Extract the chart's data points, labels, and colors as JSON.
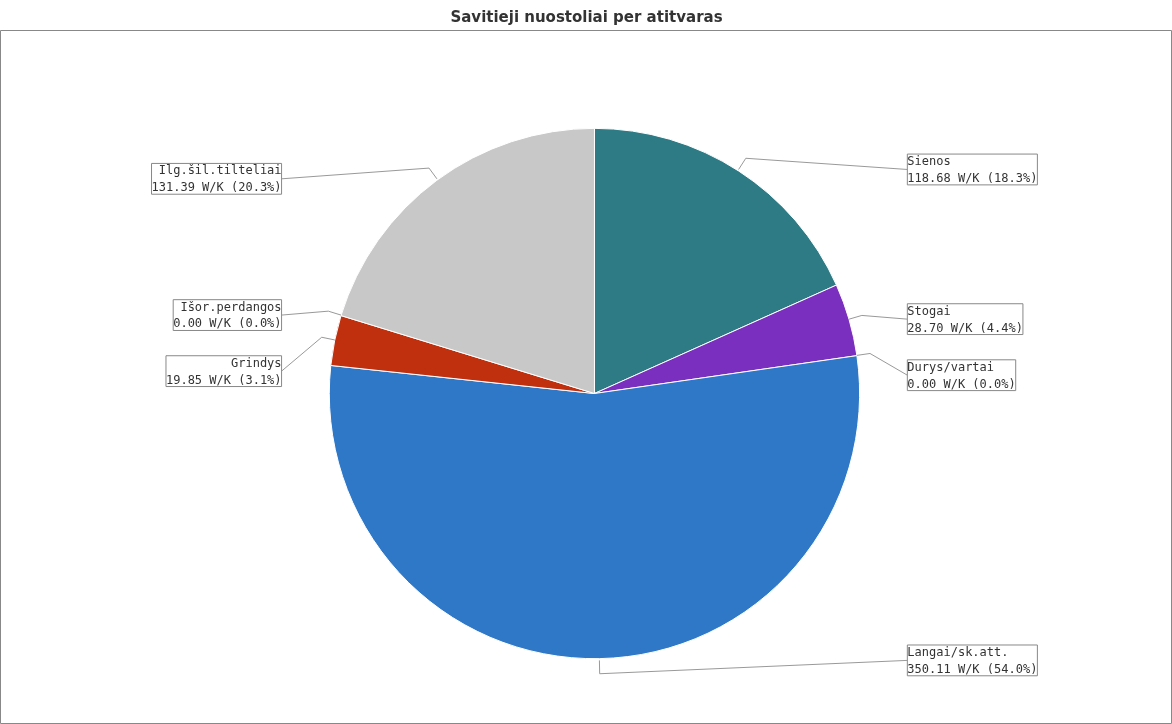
{
  "chart_data": {
    "type": "pie",
    "title": "Savitieji nuostoliai per atitvaras",
    "categories": [
      "Sienos",
      "Stogai",
      "Durys/vartai",
      "Langai/sk.att.",
      "Grindys",
      "Išor.perdangos",
      "Ilg.šil.tilteliai"
    ],
    "values": [
      118.68,
      28.7,
      0.0,
      350.11,
      19.85,
      0.0,
      131.39
    ],
    "colors": [
      "#2e7b86",
      "#7b2fbf",
      "#d8c030",
      "#2f78c8",
      "#c0300f",
      "#60a040",
      "#c8c8c8"
    ],
    "value_labels": [
      "118.68 W/K (18.3%)",
      "28.70 W/K (4.4%)",
      "0.00 W/K (0.0%)",
      "350.11 W/K (54.0%)",
      "19.85 W/K (3.1%)",
      "0.00 W/K (0.0%)",
      "131.39 W/K (20.3%)"
    ]
  }
}
